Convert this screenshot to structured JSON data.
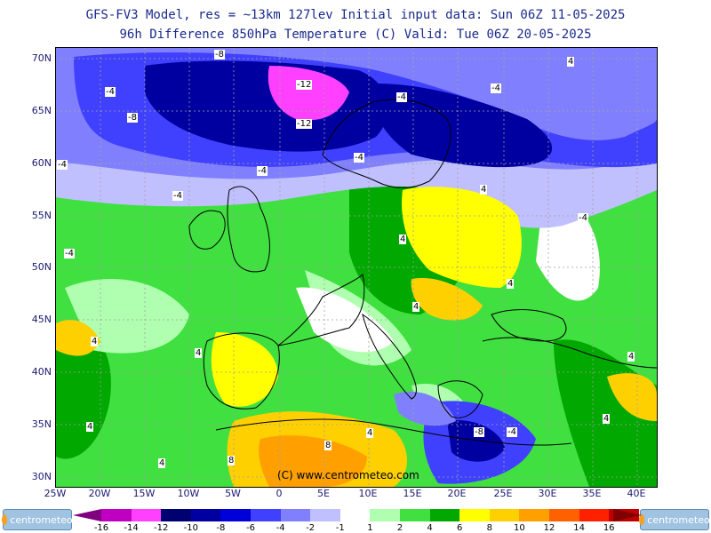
{
  "header": {
    "title_line1": "GFS-FV3 Model, res = ~13km 127lev   Initial input data: Sun 06Z 11-05-2025",
    "title_line2": "96h Difference 850hPa Temperature (C)  Valid: Tue 06Z 20-05-2025"
  },
  "axes": {
    "lat_labels": [
      "70N",
      "65N",
      "60N",
      "55N",
      "50N",
      "45N",
      "40N",
      "35N",
      "30N"
    ],
    "lon_labels": [
      "25W",
      "20W",
      "15W",
      "10W",
      "5W",
      "0",
      "5E",
      "10E",
      "15E",
      "20E",
      "25E",
      "30E",
      "35E",
      "40E"
    ]
  },
  "contour_labels": [
    "-8",
    "-12",
    "-12",
    "-8",
    "-4",
    "-4",
    "-4",
    "-4",
    "-4",
    "-4",
    "-4",
    "-4",
    "-4",
    "4",
    "4",
    "4",
    "4",
    "4",
    "4",
    "4",
    "4",
    "4",
    "4",
    "4",
    "4",
    "8",
    "8",
    "-8",
    "-4"
  ],
  "copyright": "(C) www.centrometeo.com",
  "logos": {
    "left": "centrometeo",
    "right": "centrometeo"
  },
  "legend": {
    "levels": [
      "-16",
      "-14",
      "-12",
      "-10",
      "-8",
      "-6",
      "-4",
      "-2",
      "-1",
      "1",
      "2",
      "4",
      "6",
      "8",
      "10",
      "12",
      "14",
      "16"
    ],
    "colors": [
      "#c000c0",
      "#ff40ff",
      "#000070",
      "#0000a0",
      "#0000d8",
      "#4040ff",
      "#8080ff",
      "#c0c0ff",
      "#ffffff",
      "#b0ffb0",
      "#40e040",
      "#00a800",
      "#ffff00",
      "#ffd000",
      "#ffa000",
      "#ff6000",
      "#ff2000",
      "#c00000"
    ],
    "edge_colors": {
      "low": "#800080",
      "high": "#800000"
    }
  },
  "map": {
    "colors": {
      "sea_base": "#40e040",
      "land_line": "#000000",
      "grid_line": "#a0a0a0"
    }
  }
}
